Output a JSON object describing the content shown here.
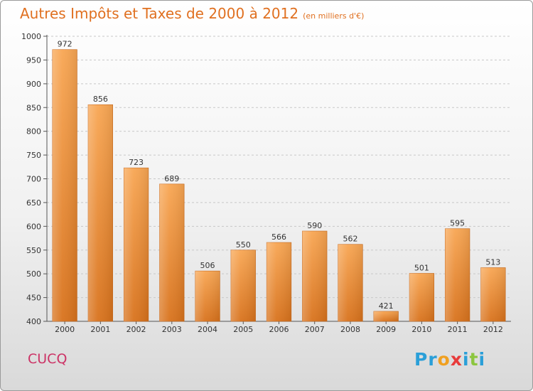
{
  "title": {
    "main": "Autres Impôts et Taxes de 2000 à 2012",
    "sub": "(en milliers d'€)"
  },
  "commune": "CUCQ",
  "logo": {
    "letters": [
      "P",
      "r",
      "o",
      "x",
      "i",
      "t",
      "i"
    ],
    "colors": [
      "#2a9fd8",
      "#2a9fd8",
      "#f0a020",
      "#e83a3a",
      "#2a9fd8",
      "#8cc63f",
      "#2a9fd8"
    ]
  },
  "chart_data": {
    "type": "bar",
    "title": "Autres Impôts et Taxes de 2000 à 2012",
    "subtitle": "(en milliers d'€)",
    "categories": [
      "2000",
      "2001",
      "2002",
      "2003",
      "2004",
      "2005",
      "2006",
      "2007",
      "2008",
      "2009",
      "2010",
      "2011",
      "2012"
    ],
    "values": [
      972,
      856,
      723,
      689,
      506,
      550,
      566,
      590,
      562,
      421,
      501,
      595,
      513
    ],
    "ylim": [
      400,
      1000
    ],
    "yticks": [
      400,
      450,
      500,
      550,
      600,
      650,
      700,
      750,
      800,
      850,
      900,
      950,
      1000
    ],
    "grid": "horizontal dashed",
    "bar_color": "#f08c30"
  }
}
